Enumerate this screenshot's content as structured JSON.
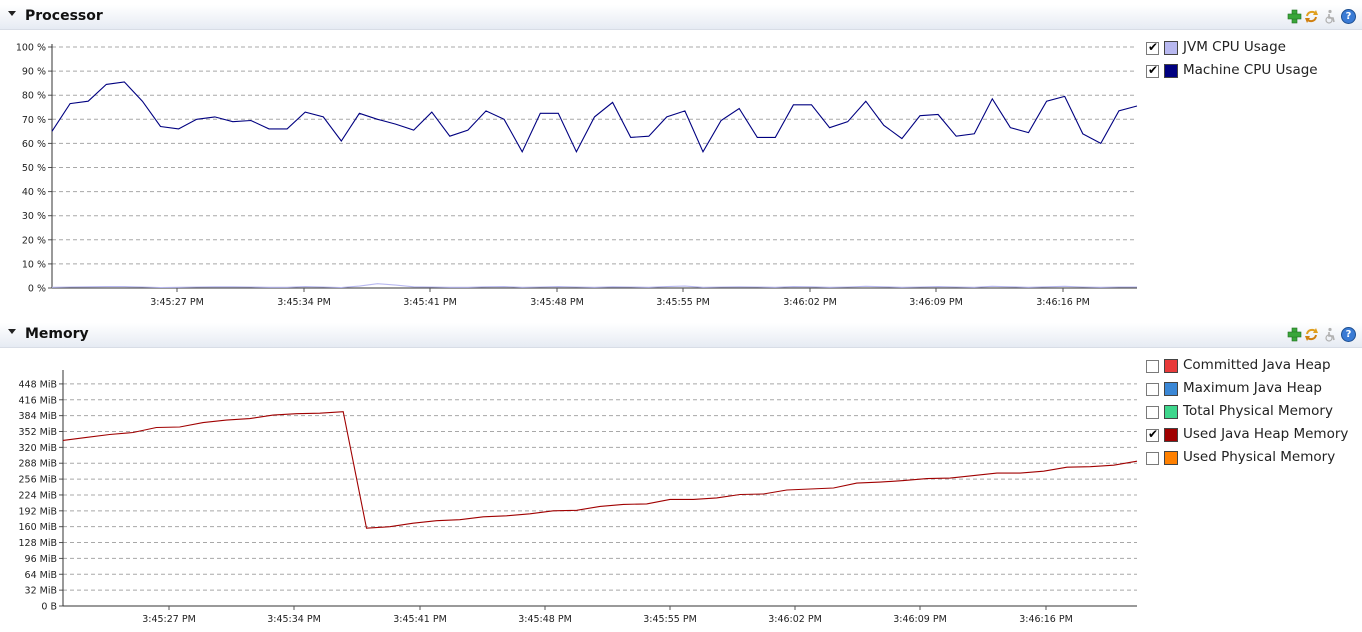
{
  "processor": {
    "title": "Processor",
    "legend": [
      {
        "label": "JVM CPU Usage",
        "checked": true,
        "color": "#b8b8f0"
      },
      {
        "label": "Machine CPU Usage",
        "checked": true,
        "color": "#000080"
      }
    ],
    "chart_data": {
      "type": "line",
      "y_ticks": [
        "100 %",
        "90 %",
        "80 %",
        "70 %",
        "60 %",
        "50 %",
        "40 %",
        "30 %",
        "20 %",
        "10 %",
        "0 %"
      ],
      "ylim": [
        0,
        100
      ],
      "x_ticks": [
        "3:45:27 PM",
        "3:45:34 PM",
        "3:45:41 PM",
        "3:45:48 PM",
        "3:45:55 PM",
        "3:46:02 PM",
        "3:46:09 PM",
        "3:46:16 PM"
      ],
      "grid": true,
      "series": [
        {
          "name": "Machine CPU Usage",
          "color": "#000080",
          "values": [
            65,
            76.5,
            77.5,
            84.5,
            85.5,
            77.5,
            67,
            66,
            70,
            71,
            69,
            69.5,
            66,
            66,
            73,
            71,
            61,
            72.5,
            70,
            68,
            65.5,
            73,
            63,
            65.5,
            73.5,
            70,
            56.5,
            72.5,
            72.5,
            56.5,
            71,
            77,
            62.5,
            63,
            71,
            73.5,
            56.5,
            69.5,
            74.5,
            62.5,
            62.5,
            76,
            76,
            66.5,
            69,
            77.5,
            67.5,
            62,
            71.5,
            72,
            63,
            64,
            78.5,
            66.5,
            64.5,
            77.5,
            79.5,
            64,
            60,
            73.5,
            75.5
          ]
        },
        {
          "name": "JVM CPU Usage",
          "color": "#b8b8f0",
          "values": [
            0.3,
            0.4,
            0.5,
            0.6,
            0.6,
            0.4,
            0.2,
            0.3,
            0.4,
            0.5,
            0.5,
            0.4,
            0.3,
            0.3,
            0.6,
            0.4,
            0.2,
            0.8,
            1.8,
            1.2,
            0.5,
            0.4,
            0.3,
            0.3,
            0.5,
            0.6,
            0.3,
            0.4,
            0.6,
            0.4,
            0.3,
            0.5,
            0.4,
            0.3,
            0.6,
            0.8,
            0.3,
            0.4,
            0.5,
            0.4,
            0.3,
            0.6,
            0.5,
            0.3,
            0.4,
            0.7,
            0.5,
            0.3,
            0.4,
            0.6,
            0.4,
            0.3,
            0.7,
            0.5,
            0.3,
            0.5,
            0.7,
            0.4,
            0.3,
            0.4,
            0.4
          ]
        }
      ]
    }
  },
  "memory": {
    "title": "Memory",
    "legend": [
      {
        "label": "Committed Java Heap",
        "checked": false,
        "color": "#e83a3a"
      },
      {
        "label": "Maximum Java Heap",
        "checked": false,
        "color": "#3a87d6"
      },
      {
        "label": "Total Physical Memory",
        "checked": false,
        "color": "#3ed68c"
      },
      {
        "label": "Used Java Heap Memory",
        "checked": true,
        "color": "#a00000"
      },
      {
        "label": "Used Physical Memory",
        "checked": false,
        "color": "#ff8000"
      }
    ],
    "chart_data": {
      "type": "line",
      "y_ticks": [
        "448 MiB",
        "416 MiB",
        "384 MiB",
        "352 MiB",
        "320 MiB",
        "288 MiB",
        "256 MiB",
        "224 MiB",
        "192 MiB",
        "160 MiB",
        "128 MiB",
        "96 MiB",
        "64 MiB",
        "32 MiB",
        "0 B"
      ],
      "ylim": [
        0,
        470
      ],
      "x_ticks": [
        "3:45:27 PM",
        "3:45:34 PM",
        "3:45:41 PM",
        "3:45:48 PM",
        "3:45:55 PM",
        "3:46:02 PM",
        "3:46:09 PM",
        "3:46:16 PM"
      ],
      "grid": true,
      "series": [
        {
          "name": "Used Java Heap Memory",
          "color": "#a00000",
          "values": [
            [
              0,
              334
            ],
            [
              1,
              340
            ],
            [
              2,
              346
            ],
            [
              3,
              350
            ],
            [
              4,
              360
            ],
            [
              5,
              361
            ],
            [
              6,
              370
            ],
            [
              7,
              375
            ],
            [
              8,
              378
            ],
            [
              9,
              385
            ],
            [
              10,
              388
            ],
            [
              11,
              389
            ],
            [
              12,
              392
            ],
            [
              13,
              157
            ],
            [
              14,
              160
            ],
            [
              15,
              167
            ],
            [
              16,
              172
            ],
            [
              17,
              174
            ],
            [
              18,
              180
            ],
            [
              19,
              182
            ],
            [
              20,
              186
            ],
            [
              21,
              192
            ],
            [
              22,
              193
            ],
            [
              23,
              201
            ],
            [
              24,
              205
            ],
            [
              25,
              206
            ],
            [
              26,
              215
            ],
            [
              27,
              215
            ],
            [
              28,
              218
            ],
            [
              29,
              225
            ],
            [
              30,
              226
            ],
            [
              31,
              234
            ],
            [
              32,
              236
            ],
            [
              33,
              238
            ],
            [
              34,
              248
            ],
            [
              35,
              250
            ],
            [
              36,
              253
            ],
            [
              37,
              257
            ],
            [
              38,
              258
            ],
            [
              39,
              263
            ],
            [
              40,
              268
            ],
            [
              41,
              268
            ],
            [
              42,
              272
            ],
            [
              43,
              280
            ],
            [
              44,
              281
            ],
            [
              45,
              284
            ],
            [
              46,
              292
            ]
          ]
        }
      ]
    }
  },
  "toolbar": {
    "add_icon": "add-chart-icon",
    "sync_icon": "synchronize-icon",
    "accessibility_icon": "accessibility-icon",
    "help_icon": "help-icon",
    "help_glyph": "?"
  }
}
